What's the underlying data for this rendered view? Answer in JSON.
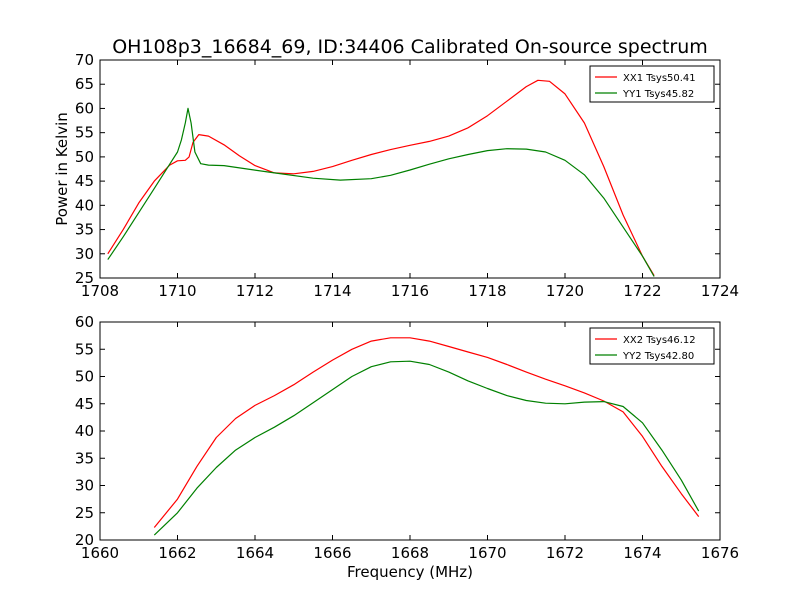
{
  "title": "OH108p3_16684_69, ID:34406 Calibrated On-source spectrum",
  "chart_data": [
    {
      "type": "line",
      "title": "OH108p3_16684_69, ID:34406 Calibrated On-source spectrum",
      "xlabel": "",
      "ylabel": "Power in Kelvin",
      "xlim": [
        1708,
        1724
      ],
      "ylim": [
        25,
        70
      ],
      "xticks": [
        1708,
        1710,
        1712,
        1714,
        1716,
        1718,
        1720,
        1722,
        1724
      ],
      "yticks": [
        25,
        30,
        35,
        40,
        45,
        50,
        55,
        60,
        65,
        70
      ],
      "grid": false,
      "legend": "top-right",
      "series": [
        {
          "name": "XX1 Tsys50.41",
          "color": "#ff0000",
          "points": [
            [
              1708.2,
              30
            ],
            [
              1708.6,
              35
            ],
            [
              1709.0,
              40.5
            ],
            [
              1709.4,
              45
            ],
            [
              1709.8,
              48.3
            ],
            [
              1710.0,
              49.2
            ],
            [
              1710.2,
              49.3
            ],
            [
              1710.3,
              50
            ],
            [
              1710.4,
              53
            ],
            [
              1710.55,
              54.6
            ],
            [
              1710.8,
              54.3
            ],
            [
              1711.2,
              52.5
            ],
            [
              1711.6,
              50.2
            ],
            [
              1712.0,
              48.2
            ],
            [
              1712.5,
              46.7
            ],
            [
              1713.0,
              46.5
            ],
            [
              1713.5,
              47
            ],
            [
              1714.0,
              48
            ],
            [
              1714.5,
              49.3
            ],
            [
              1715.0,
              50.5
            ],
            [
              1715.5,
              51.5
            ],
            [
              1716.0,
              52.4
            ],
            [
              1716.5,
              53.2
            ],
            [
              1717.0,
              54.3
            ],
            [
              1717.5,
              56
            ],
            [
              1718.0,
              58.5
            ],
            [
              1718.5,
              61.5
            ],
            [
              1719.0,
              64.5
            ],
            [
              1719.3,
              65.8
            ],
            [
              1719.6,
              65.6
            ],
            [
              1720.0,
              63
            ],
            [
              1720.5,
              57
            ],
            [
              1721.0,
              48
            ],
            [
              1721.5,
              38
            ],
            [
              1722.0,
              29.5
            ],
            [
              1722.3,
              25.5
            ]
          ]
        },
        {
          "name": "YY1 Tsys45.82",
          "color": "#008000",
          "points": [
            [
              1708.2,
              28.8
            ],
            [
              1708.6,
              33.5
            ],
            [
              1709.0,
              38.5
            ],
            [
              1709.4,
              43.5
            ],
            [
              1709.8,
              48.5
            ],
            [
              1710.0,
              51
            ],
            [
              1710.1,
              53.5
            ],
            [
              1710.2,
              57
            ],
            [
              1710.27,
              60
            ],
            [
              1710.35,
              57
            ],
            [
              1710.45,
              51
            ],
            [
              1710.6,
              48.6
            ],
            [
              1710.8,
              48.3
            ],
            [
              1711.2,
              48.2
            ],
            [
              1711.8,
              47.5
            ],
            [
              1712.5,
              46.7
            ],
            [
              1713.5,
              45.6
            ],
            [
              1714.2,
              45.2
            ],
            [
              1715.0,
              45.5
            ],
            [
              1715.5,
              46.2
            ],
            [
              1716.0,
              47.3
            ],
            [
              1716.5,
              48.5
            ],
            [
              1717.0,
              49.6
            ],
            [
              1717.5,
              50.5
            ],
            [
              1718.0,
              51.3
            ],
            [
              1718.5,
              51.7
            ],
            [
              1719.0,
              51.6
            ],
            [
              1719.5,
              51
            ],
            [
              1720.0,
              49.3
            ],
            [
              1720.5,
              46.3
            ],
            [
              1721.0,
              41.5
            ],
            [
              1721.5,
              35.5
            ],
            [
              1722.0,
              29.5
            ],
            [
              1722.3,
              25.3
            ]
          ]
        }
      ]
    },
    {
      "type": "line",
      "title": "",
      "xlabel": "Frequency (MHz)",
      "ylabel": "",
      "xlim": [
        1660,
        1676
      ],
      "ylim": [
        20,
        60
      ],
      "xticks": [
        1660,
        1662,
        1664,
        1666,
        1668,
        1670,
        1672,
        1674,
        1676
      ],
      "yticks": [
        20,
        25,
        30,
        35,
        40,
        45,
        50,
        55,
        60
      ],
      "grid": false,
      "legend": "top-right",
      "series": [
        {
          "name": "XX2 Tsys46.12",
          "color": "#ff0000",
          "points": [
            [
              1661.4,
              22.3
            ],
            [
              1662.0,
              27.5
            ],
            [
              1662.5,
              33.5
            ],
            [
              1663.0,
              38.8
            ],
            [
              1663.5,
              42.3
            ],
            [
              1664.0,
              44.7
            ],
            [
              1664.5,
              46.5
            ],
            [
              1665.0,
              48.5
            ],
            [
              1665.5,
              50.8
            ],
            [
              1666.0,
              53
            ],
            [
              1666.5,
              55
            ],
            [
              1667.0,
              56.5
            ],
            [
              1667.5,
              57.1
            ],
            [
              1668.0,
              57.1
            ],
            [
              1668.5,
              56.5
            ],
            [
              1669.0,
              55.5
            ],
            [
              1669.5,
              54.5
            ],
            [
              1670.0,
              53.5
            ],
            [
              1670.5,
              52.2
            ],
            [
              1671.0,
              50.8
            ],
            [
              1671.5,
              49.5
            ],
            [
              1672.0,
              48.3
            ],
            [
              1672.5,
              47
            ],
            [
              1673.0,
              45.5
            ],
            [
              1673.5,
              43.5
            ],
            [
              1674.0,
              39
            ],
            [
              1674.5,
              33.5
            ],
            [
              1675.0,
              28.5
            ],
            [
              1675.45,
              24.3
            ]
          ]
        },
        {
          "name": "YY2 Tsys42.80",
          "color": "#008000",
          "points": [
            [
              1661.4,
              20.9
            ],
            [
              1662.0,
              25
            ],
            [
              1662.5,
              29.5
            ],
            [
              1663.0,
              33.3
            ],
            [
              1663.5,
              36.5
            ],
            [
              1664.0,
              38.8
            ],
            [
              1664.5,
              40.7
            ],
            [
              1665.0,
              42.8
            ],
            [
              1665.5,
              45.2
            ],
            [
              1666.0,
              47.6
            ],
            [
              1666.5,
              50
            ],
            [
              1667.0,
              51.8
            ],
            [
              1667.5,
              52.7
            ],
            [
              1668.0,
              52.8
            ],
            [
              1668.5,
              52.2
            ],
            [
              1669.0,
              50.8
            ],
            [
              1669.5,
              49.2
            ],
            [
              1670.0,
              47.8
            ],
            [
              1670.5,
              46.5
            ],
            [
              1671.0,
              45.6
            ],
            [
              1671.5,
              45.1
            ],
            [
              1672.0,
              45
            ],
            [
              1672.5,
              45.3
            ],
            [
              1673.0,
              45.4
            ],
            [
              1673.5,
              44.5
            ],
            [
              1674.0,
              41.5
            ],
            [
              1674.5,
              36.5
            ],
            [
              1675.0,
              31
            ],
            [
              1675.45,
              25.3
            ]
          ]
        }
      ]
    }
  ]
}
